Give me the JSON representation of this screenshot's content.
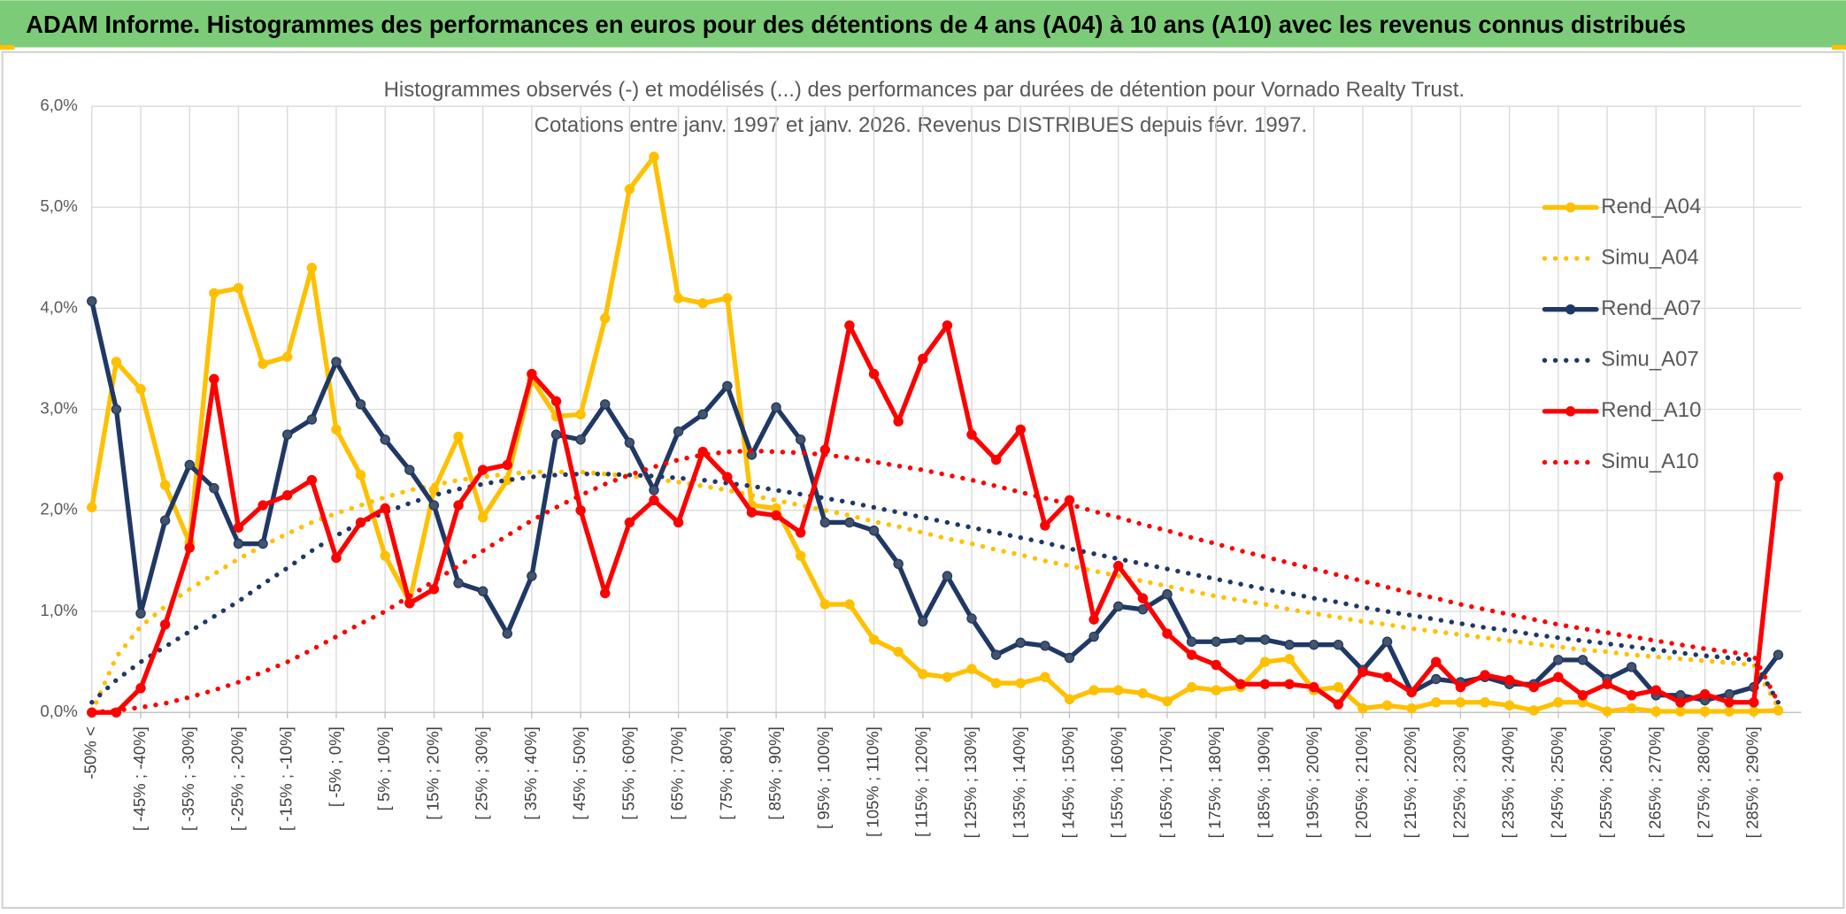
{
  "header": {
    "title": "ADAM Informe. Histogrammes des performances en euros pour des détentions de 4 ans (A04) à 10 ans (A10) avec les revenus connus distribués"
  },
  "chart_data": {
    "type": "line",
    "title": "Histogrammes observés (-) et modélisés (...) des performances par durées de détention pour Vornado Realty Trust.",
    "subtitle": "Cotations entre janv. 1997 et janv. 2026. Revenus DISTRIBUES depuis févr. 1997.",
    "categories": [
      "-50% <",
      null,
      "[ -45% ; -40%]",
      null,
      "[ -35% ; -30%]",
      null,
      "[ -25% ; -20%]",
      null,
      "[ -15% ; -10%]",
      null,
      "[ -5% ; 0%]",
      null,
      "[ 5% ; 10%]",
      null,
      "[ 15% ; 20%]",
      null,
      "[ 25% ; 30%]",
      null,
      "[ 35% ; 40%]",
      null,
      "[ 45% ; 50%]",
      null,
      "[ 55% ; 60%]",
      null,
      "[ 65% ; 70%]",
      null,
      "[ 75% ; 80%]",
      null,
      "[ 85% ; 90%]",
      null,
      "[ 95% ; 100%]",
      null,
      "[ 105% ; 110%]",
      null,
      "[ 115% ; 120%]",
      null,
      "[ 125% ; 130%]",
      null,
      "[ 135% ; 140%]",
      null,
      "[ 145% ; 150%]",
      null,
      "[ 155% ; 160%]",
      null,
      "[ 165% ; 170%]",
      null,
      "[ 175% ; 180%]",
      null,
      "[ 185% ; 190%]",
      null,
      "[ 195% ; 200%]",
      null,
      "[ 205% ; 210%]",
      null,
      "[ 215% ; 220%]",
      null,
      "[ 225% ; 230%]",
      null,
      "[ 235% ; 240%]",
      null,
      "[ 245% ; 250%]",
      null,
      "[ 255% ; 260%]",
      null,
      "[ 265% ; 270%]",
      null,
      "[ 275% ; 280%]",
      null,
      "[ 285% ; 290%]",
      null
    ],
    "ylim": [
      0,
      6
    ],
    "yticks": [
      {
        "value": 0,
        "label": "0,0%"
      },
      {
        "value": 1,
        "label": "1,0%"
      },
      {
        "value": 2,
        "label": "2,0%"
      },
      {
        "value": 3,
        "label": "3,0%"
      },
      {
        "value": 4,
        "label": "4,0%"
      },
      {
        "value": 5,
        "label": "5,0%"
      },
      {
        "value": 6,
        "label": "6,0%"
      }
    ],
    "grid": true,
    "legend": "right",
    "series": [
      {
        "name": "Rend_A04",
        "color": "#ffc000",
        "style": "solid",
        "markers": true,
        "values": [
          2.03,
          3.47,
          3.2,
          2.25,
          1.68,
          4.15,
          4.2,
          3.45,
          3.52,
          4.4,
          2.8,
          2.35,
          1.55,
          1.1,
          2.2,
          2.73,
          1.93,
          2.3,
          3.3,
          2.93,
          2.95,
          3.9,
          5.18,
          5.5,
          4.1,
          4.05,
          4.1,
          2.05,
          2.02,
          1.55,
          1.07,
          1.07,
          0.72,
          0.6,
          0.38,
          0.35,
          0.43,
          0.29,
          0.29,
          0.35,
          0.13,
          0.22,
          0.22,
          0.19,
          0.11,
          0.25,
          0.22,
          0.25,
          0.5,
          0.53,
          0.22,
          0.25,
          0.04,
          0.07,
          0.04,
          0.1,
          0.1,
          0.1,
          0.07,
          0.02,
          0.1,
          0.1,
          0.01,
          0.04,
          0.01,
          0.01,
          0.01,
          0.01,
          0.01,
          0.02
        ]
      },
      {
        "name": "Simu_A04",
        "color": "#ffc000",
        "style": "dotted",
        "markers": false,
        "values": [
          0,
          0.55,
          0.85,
          1.05,
          1.22,
          1.37,
          1.52,
          1.65,
          1.77,
          1.88,
          1.97,
          2.05,
          2.13,
          2.2,
          2.25,
          2.3,
          2.33,
          2.36,
          2.38,
          2.38,
          2.38,
          2.36,
          2.34,
          2.31,
          2.28,
          2.24,
          2.2,
          2.15,
          2.1,
          2.05,
          2.0,
          1.95,
          1.89,
          1.84,
          1.78,
          1.72,
          1.67,
          1.61,
          1.56,
          1.5,
          1.45,
          1.4,
          1.35,
          1.3,
          1.25,
          1.2,
          1.15,
          1.11,
          1.07,
          1.02,
          0.98,
          0.94,
          0.9,
          0.87,
          0.83,
          0.8,
          0.77,
          0.74,
          0.71,
          0.68,
          0.65,
          0.62,
          0.6,
          0.57,
          0.55,
          0.53,
          0.51,
          0.49,
          0.47,
          0.05
        ]
      },
      {
        "name": "Rend_A07",
        "color": "#203864",
        "style": "solid",
        "markers": true,
        "values": [
          4.07,
          3.0,
          0.98,
          1.9,
          2.45,
          2.22,
          1.67,
          1.67,
          2.75,
          2.9,
          3.47,
          3.05,
          2.7,
          2.4,
          2.05,
          1.28,
          1.2,
          0.78,
          1.35,
          2.75,
          2.7,
          3.05,
          2.67,
          2.2,
          2.78,
          2.95,
          3.23,
          2.55,
          3.02,
          2.7,
          1.88,
          1.88,
          1.8,
          1.47,
          0.9,
          1.35,
          0.93,
          0.57,
          0.69,
          0.66,
          0.54,
          0.75,
          1.05,
          1.02,
          1.17,
          0.7,
          0.7,
          0.72,
          0.72,
          0.67,
          0.67,
          0.67,
          0.42,
          0.7,
          0.2,
          0.33,
          0.3,
          0.35,
          0.28,
          0.28,
          0.52,
          0.52,
          0.33,
          0.45,
          0.17,
          0.17,
          0.12,
          0.18,
          0.25,
          0.57
        ]
      },
      {
        "name": "Simu_A07",
        "color": "#203864",
        "style": "dotted",
        "markers": false,
        "values": [
          0.1,
          0.32,
          0.5,
          0.65,
          0.8,
          0.95,
          1.1,
          1.27,
          1.43,
          1.6,
          1.75,
          1.88,
          1.98,
          2.07,
          2.15,
          2.21,
          2.26,
          2.3,
          2.33,
          2.35,
          2.36,
          2.36,
          2.35,
          2.34,
          2.32,
          2.3,
          2.27,
          2.24,
          2.2,
          2.16,
          2.12,
          2.08,
          2.03,
          1.98,
          1.93,
          1.88,
          1.83,
          1.78,
          1.73,
          1.68,
          1.62,
          1.57,
          1.52,
          1.47,
          1.42,
          1.37,
          1.32,
          1.27,
          1.22,
          1.18,
          1.13,
          1.09,
          1.04,
          1.0,
          0.96,
          0.92,
          0.88,
          0.84,
          0.81,
          0.77,
          0.74,
          0.71,
          0.68,
          0.65,
          0.62,
          0.59,
          0.56,
          0.54,
          0.52,
          0.1
        ]
      },
      {
        "name": "Rend_A10",
        "color": "#ff0000",
        "style": "solid",
        "markers": true,
        "values": [
          0.0,
          0.0,
          0.24,
          0.87,
          1.63,
          3.3,
          1.83,
          2.05,
          2.15,
          2.3,
          1.53,
          1.88,
          2.02,
          1.08,
          1.22,
          2.05,
          2.4,
          2.45,
          3.35,
          3.08,
          2.0,
          1.18,
          1.88,
          2.1,
          1.88,
          2.58,
          2.33,
          1.98,
          1.95,
          1.78,
          2.6,
          3.83,
          3.35,
          2.88,
          3.5,
          3.83,
          2.75,
          2.5,
          2.8,
          1.85,
          2.1,
          0.92,
          1.45,
          1.13,
          0.78,
          0.57,
          0.47,
          0.28,
          0.28,
          0.28,
          0.25,
          0.08,
          0.4,
          0.35,
          0.2,
          0.5,
          0.25,
          0.37,
          0.32,
          0.25,
          0.35,
          0.17,
          0.28,
          0.17,
          0.22,
          0.1,
          0.18,
          0.1,
          0.1,
          2.33
        ]
      },
      {
        "name": "Simu_A10",
        "color": "#ff0000",
        "style": "dotted",
        "markers": false,
        "values": [
          0,
          0.02,
          0.05,
          0.09,
          0.15,
          0.22,
          0.3,
          0.4,
          0.5,
          0.62,
          0.75,
          0.88,
          1.0,
          1.15,
          1.3,
          1.45,
          1.6,
          1.75,
          1.9,
          2.03,
          2.15,
          2.26,
          2.35,
          2.43,
          2.5,
          2.55,
          2.58,
          2.59,
          2.58,
          2.57,
          2.55,
          2.52,
          2.48,
          2.44,
          2.4,
          2.35,
          2.3,
          2.24,
          2.18,
          2.12,
          2.06,
          1.99,
          1.93,
          1.86,
          1.8,
          1.73,
          1.67,
          1.6,
          1.54,
          1.48,
          1.42,
          1.36,
          1.3,
          1.24,
          1.18,
          1.13,
          1.07,
          1.02,
          0.97,
          0.92,
          0.87,
          0.83,
          0.79,
          0.75,
          0.71,
          0.67,
          0.63,
          0.6,
          0.56,
          0.1
        ]
      }
    ]
  }
}
